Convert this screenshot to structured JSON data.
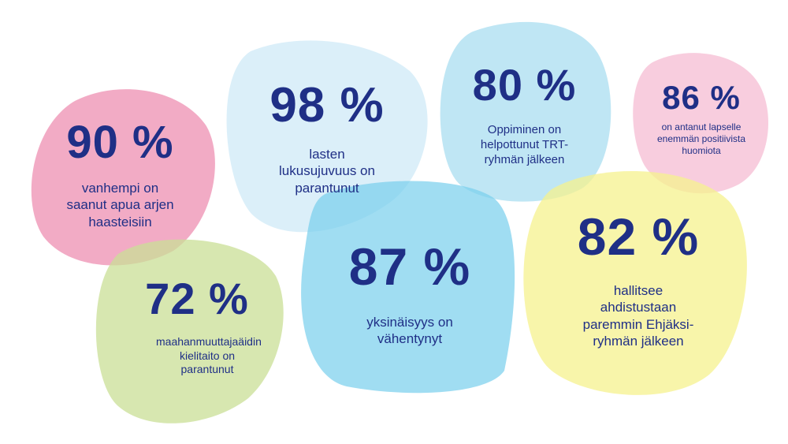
{
  "colors": {
    "text": "#1f2f86",
    "pink": "#ee8fb2",
    "light_pink": "#f6c2d6",
    "light_blue": "#d2ecf8",
    "sky": "#b3e3f2",
    "blue": "#7fd1ee",
    "yellow": "#f5f39a",
    "green": "#cfe3a0"
  },
  "stats": [
    {
      "value": "90 %",
      "text": "vanhempi on saanut apua arjen haasteisiin"
    },
    {
      "value": "98 %",
      "text": "lasten lukusujuvuus on parantunut"
    },
    {
      "value": "80 %",
      "text": "Oppiminen on helpottunut TRT-ryhmän jälkeen"
    },
    {
      "value": "86 %",
      "text": "on antanut lapselle enemmän positiivista huomiota"
    },
    {
      "value": "72 %",
      "text": "maahanmuuttajaäidin kielitaito on parantunut"
    },
    {
      "value": "87 %",
      "text": "yksinäisyys on vähentynyt"
    },
    {
      "value": "82 %",
      "text": "hallitsee ahdistustaan paremmin Ehjäksi-ryhmän jälkeen"
    }
  ]
}
